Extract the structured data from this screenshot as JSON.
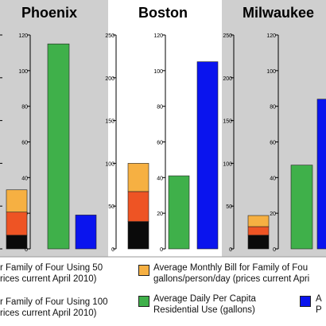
{
  "colors": {
    "panel_gray": "#cfcfcf",
    "panel_white": "#ffffff",
    "bill_50": "#f6b042",
    "bill_100": "#ee5424",
    "bill_base": "#0a0a0a",
    "per_capita": "#3fb04a",
    "third_series": "#0a14ee"
  },
  "chart_data": [
    {
      "type": "bar",
      "panel": "Phoenix",
      "title": "Phoenix",
      "left_axis": {
        "ticks": [],
        "ylim": [
          0,
          250
        ]
      },
      "right_axis": {
        "ticks": [
          "0",
          "20",
          "40",
          "60",
          "80",
          "100",
          "120"
        ],
        "ylim": [
          0,
          120
        ]
      },
      "stacked_bill": {
        "segments": [
          16,
          27,
          26
        ]
      },
      "per_capita_gallons": 115,
      "third_series_value": 19
    },
    {
      "type": "bar",
      "panel": "Boston",
      "title": "Boston",
      "left_axis": {
        "ticks": [
          "0",
          "50",
          "100",
          "150",
          "200",
          "250"
        ],
        "ylim": [
          0,
          250
        ]
      },
      "right_axis": {
        "ticks": [
          "0",
          "20",
          "40",
          "60",
          "80",
          "100",
          "120"
        ],
        "ylim": [
          0,
          120
        ]
      },
      "stacked_bill": {
        "segments": [
          32,
          35,
          33
        ]
      },
      "per_capita_gallons": 41,
      "third_series_value": 105
    },
    {
      "type": "bar",
      "panel": "Milwaukee",
      "title": "Milwaukee",
      "left_axis": {
        "ticks": [
          "0",
          "50",
          "100",
          "150",
          "200",
          "250"
        ],
        "ylim": [
          0,
          250
        ]
      },
      "right_axis": {
        "ticks": [
          "0",
          "20",
          "40",
          "60",
          "80",
          "100",
          "120"
        ],
        "ylim": [
          0,
          120
        ]
      },
      "stacked_bill": {
        "segments": [
          16,
          10,
          13
        ]
      },
      "per_capita_gallons": 47,
      "third_series_value": 84
    }
  ],
  "legend": {
    "bill_50_left": [
      "r Family of Four Using 50",
      "rices current April 2010)"
    ],
    "bill_100_left": [
      "r Family of Four Using 100",
      "rices current April 2010)"
    ],
    "bill_50": [
      "Average Monthly Bill for Family of Fou",
      "gallons/person/day (prices current Apri"
    ],
    "per_capita": [
      "Average Daily Per Capita",
      "Residential Use (gallons)"
    ],
    "third_series": [
      "A",
      "P"
    ]
  }
}
